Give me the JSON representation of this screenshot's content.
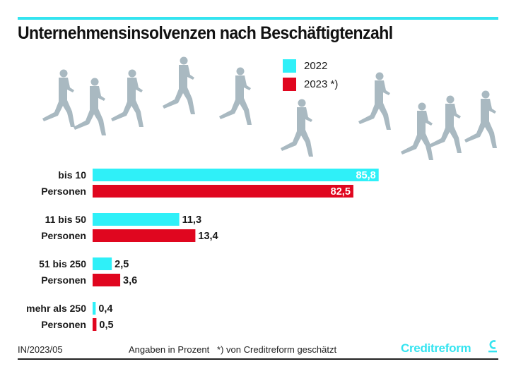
{
  "header": {
    "title": "Unternehmensinsolvenzen nach Beschäftigtenzahl"
  },
  "colors": {
    "accent_line": "#35e4f0",
    "series_2022": "#2ff0f8",
    "series_2023": "#e0061f",
    "runner_silhouette": "#a9b9c1",
    "brand": "#35e4f0"
  },
  "legend": {
    "items": [
      {
        "label": "2022",
        "color": "#2ff0f8"
      },
      {
        "label": "2023 *)",
        "color": "#e0061f"
      }
    ]
  },
  "footer": {
    "code": "IN/2023/05",
    "note": "Angaben in Prozent   *) von Creditreform geschätzt",
    "brand": "Creditreform",
    "brand_icon": "creditreform-c-logo-icon"
  },
  "decoration": {
    "icon": "running-businessman-silhouettes-icon",
    "count": 10
  },
  "chart_data": {
    "type": "bar",
    "orientation": "horizontal",
    "title": "Unternehmensinsolvenzen nach Beschäftigtenzahl",
    "xlabel": "",
    "ylabel": "",
    "unit": "Angaben in Prozent",
    "grid": false,
    "legend_position": "top-right",
    "axis_break": {
      "category": "bis 10 Personen",
      "note": "first category bars are truncated with a break mark"
    },
    "categories": [
      [
        "bis 10",
        "Personen"
      ],
      [
        "11 bis 50",
        "Personen"
      ],
      [
        "51 bis 250",
        "Personen"
      ],
      [
        "mehr als 250",
        "Personen"
      ]
    ],
    "series": [
      {
        "name": "2022",
        "values": [
          85.8,
          11.3,
          2.5,
          0.4
        ],
        "labels": [
          "85,8",
          "11,3",
          "2,5",
          "0,4"
        ]
      },
      {
        "name": "2023 *)",
        "values": [
          82.5,
          13.4,
          3.6,
          0.5
        ],
        "labels": [
          "82,5",
          "13,4",
          "3,6",
          "0,5"
        ]
      }
    ]
  }
}
